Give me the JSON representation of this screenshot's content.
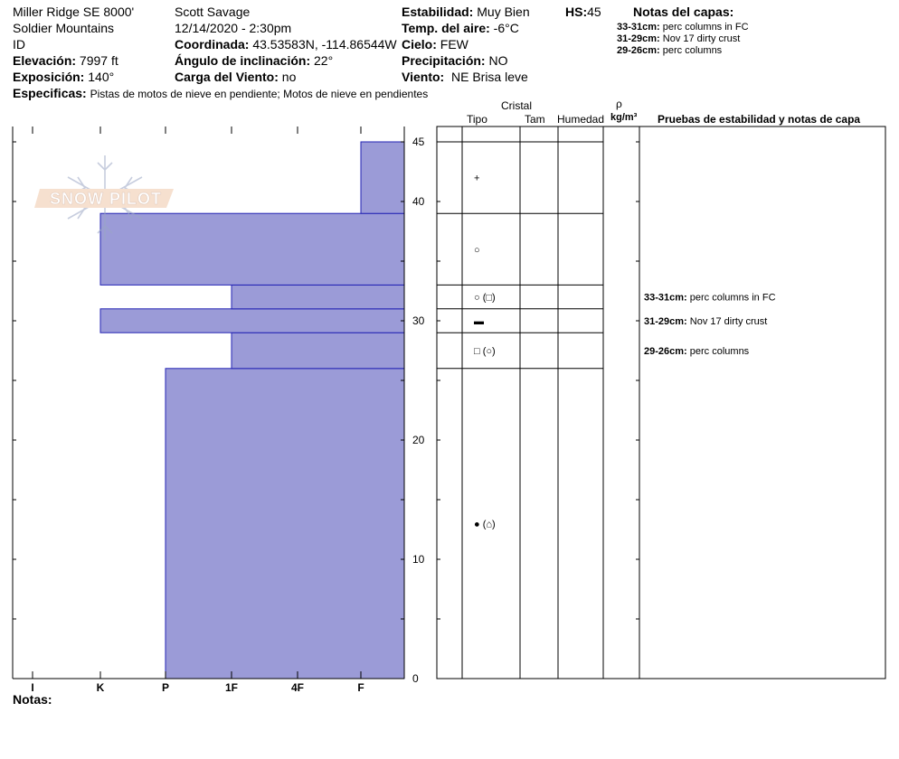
{
  "header": {
    "location": "Miller Ridge SE 8000'",
    "range": "Soldier Mountains",
    "state": "ID",
    "elevation_label": "Elevación:",
    "elevation_value": "7997 ft",
    "aspect_label": "Exposición:",
    "aspect_value": "140°",
    "specifics_label": "Especificas:",
    "specifics_value": "Pistas de motos de nieve en pendiente;  Motos de nieve en pendientes",
    "observer": "Scott Savage",
    "datetime": "12/14/2020 - 2:30pm",
    "coord_label": "Coordinada:",
    "coord_value": "43.53583N, -114.86544W",
    "slope_label": "Ángulo de inclinación:",
    "slope_value": "22°",
    "wind_load_label": "Carga del Viento:",
    "wind_load_value": "no",
    "stability_label": "Estabilidad:",
    "stability_value": "Muy Bien",
    "air_temp_label": "Temp. del aire:",
    "air_temp_value": "-6°C",
    "sky_label": "Cielo:",
    "sky_value": "FEW",
    "precip_label": "Precipitación:",
    "precip_value": "NO",
    "wind_label": "Viento:",
    "wind_value": "NE Brisa leve",
    "hs_label": "HS:",
    "hs_value": "45",
    "notes_title": "Notas del capas:",
    "notes": [
      {
        "range": "33-31cm:",
        "text": "perc columns in FC"
      },
      {
        "range": "31-29cm:",
        "text": "Nov 17 dirty crust"
      },
      {
        "range": "29-26cm:",
        "text": "perc columns"
      }
    ]
  },
  "watermark": "SNOW PILOT",
  "columns": {
    "crystal": "Cristal",
    "type": "Tipo",
    "size": "Tam",
    "moisture": "Humedad",
    "density_symbol": "ρ",
    "density_unit": "kg/m³",
    "tests": "Pruebas de estabilidad y notas de capa"
  },
  "footer_notes_label": "Notas:",
  "chart_data": {
    "type": "bar",
    "orientation": "horizontal",
    "xlabel": "",
    "ylabel": "",
    "x_categories": [
      "I",
      "K",
      "P",
      "1F",
      "4F",
      "F"
    ],
    "ylim": [
      0,
      45
    ],
    "y_ticks": [
      0,
      10,
      20,
      30,
      40,
      45
    ],
    "layers": [
      {
        "bottom": 0,
        "top": 26,
        "hardness": "P"
      },
      {
        "bottom": 26,
        "top": 29,
        "hardness": "1F"
      },
      {
        "bottom": 29,
        "top": 31,
        "hardness": "K"
      },
      {
        "bottom": 31,
        "top": 33,
        "hardness": "1F"
      },
      {
        "bottom": 33,
        "top": 39,
        "hardness": "K"
      },
      {
        "bottom": 39,
        "top": 45,
        "hardness": "F"
      }
    ],
    "crystal_layers": [
      {
        "bottom": 39,
        "top": 45,
        "symbols": "+"
      },
      {
        "bottom": 33,
        "top": 39,
        "symbols": "○"
      },
      {
        "bottom": 31,
        "top": 33,
        "symbols": "○ (□)"
      },
      {
        "bottom": 29,
        "top": 31,
        "symbols": "▬"
      },
      {
        "bottom": 26,
        "top": 29,
        "symbols": "□ (○)"
      },
      {
        "bottom": 0,
        "top": 26,
        "symbols": "● (⌂)"
      }
    ],
    "layer_notes": [
      {
        "range": "33-31cm:",
        "text": "perc columns in FC",
        "height": 32
      },
      {
        "range": "31-29cm:",
        "text": "Nov 17 dirty crust",
        "height": 30
      },
      {
        "range": "29-26cm:",
        "text": "perc columns",
        "height": 27.5
      }
    ],
    "colors": {
      "bar": "#9b9bd7",
      "bar_edge": "#2323b4",
      "line": "#000000"
    }
  }
}
